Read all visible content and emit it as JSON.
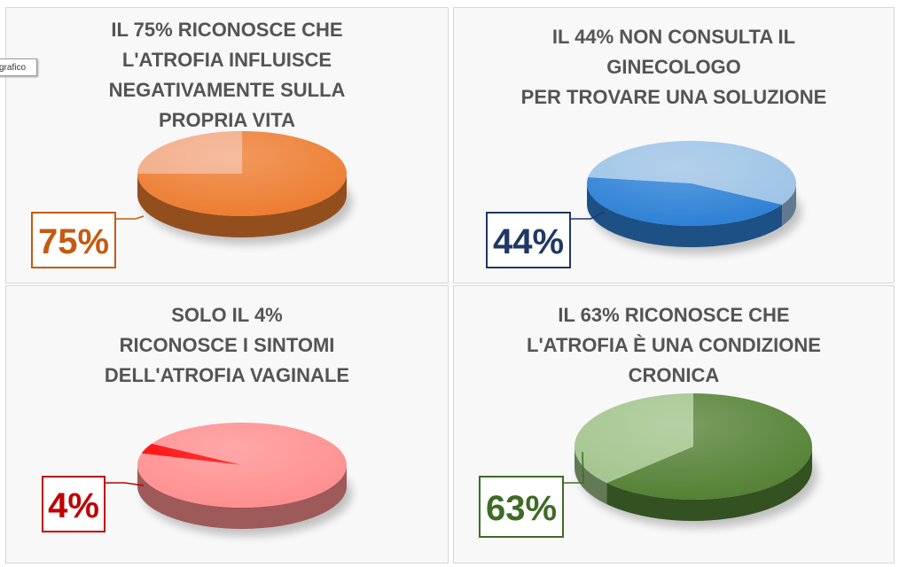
{
  "tooltip": {
    "text": "grafico"
  },
  "chart_data": [
    {
      "type": "pie",
      "title_lines": [
        "IL 75% RICONOSCE CHE",
        "L'ATROFIA INFLUISCE",
        "NEGATIVAMENTE SULLA",
        "PROPRIA VITA"
      ],
      "slices": [
        {
          "value": 75,
          "color": "#ed7d31"
        },
        {
          "value": 25,
          "color": "#f2aa84"
        }
      ],
      "data_label": "75%",
      "label_color": "#c55a11"
    },
    {
      "type": "pie",
      "title_lines": [
        "IL 44% NON CONSULTA IL",
        "GINECOLOGO",
        "PER TROVARE UNA SOLUZIONE"
      ],
      "slices": [
        {
          "value": 44,
          "color": "#2e81d6"
        },
        {
          "value": 56,
          "color": "#9dc3e6"
        }
      ],
      "data_label": "44%",
      "label_color": "#1f3864"
    },
    {
      "type": "pie",
      "title_lines": [
        "SOLO IL 4%",
        "RICONOSCE I SINTOMI",
        "DELL'ATROFIA VAGINALE"
      ],
      "slices": [
        {
          "value": 4,
          "color": "#ff0000"
        },
        {
          "value": 96,
          "color": "#ff8f8f"
        }
      ],
      "data_label": "4%",
      "label_color": "#c00000"
    },
    {
      "type": "pie",
      "title_lines": [
        "IL 63% RICONOSCE CHE",
        "L'ATROFIA È UNA CONDIZIONE",
        "CRONICA"
      ],
      "slices": [
        {
          "value": 63,
          "color": "#548235"
        },
        {
          "value": 37,
          "color": "#a2c48c"
        }
      ],
      "data_label": "63%",
      "label_color": "#3e6b26"
    }
  ]
}
